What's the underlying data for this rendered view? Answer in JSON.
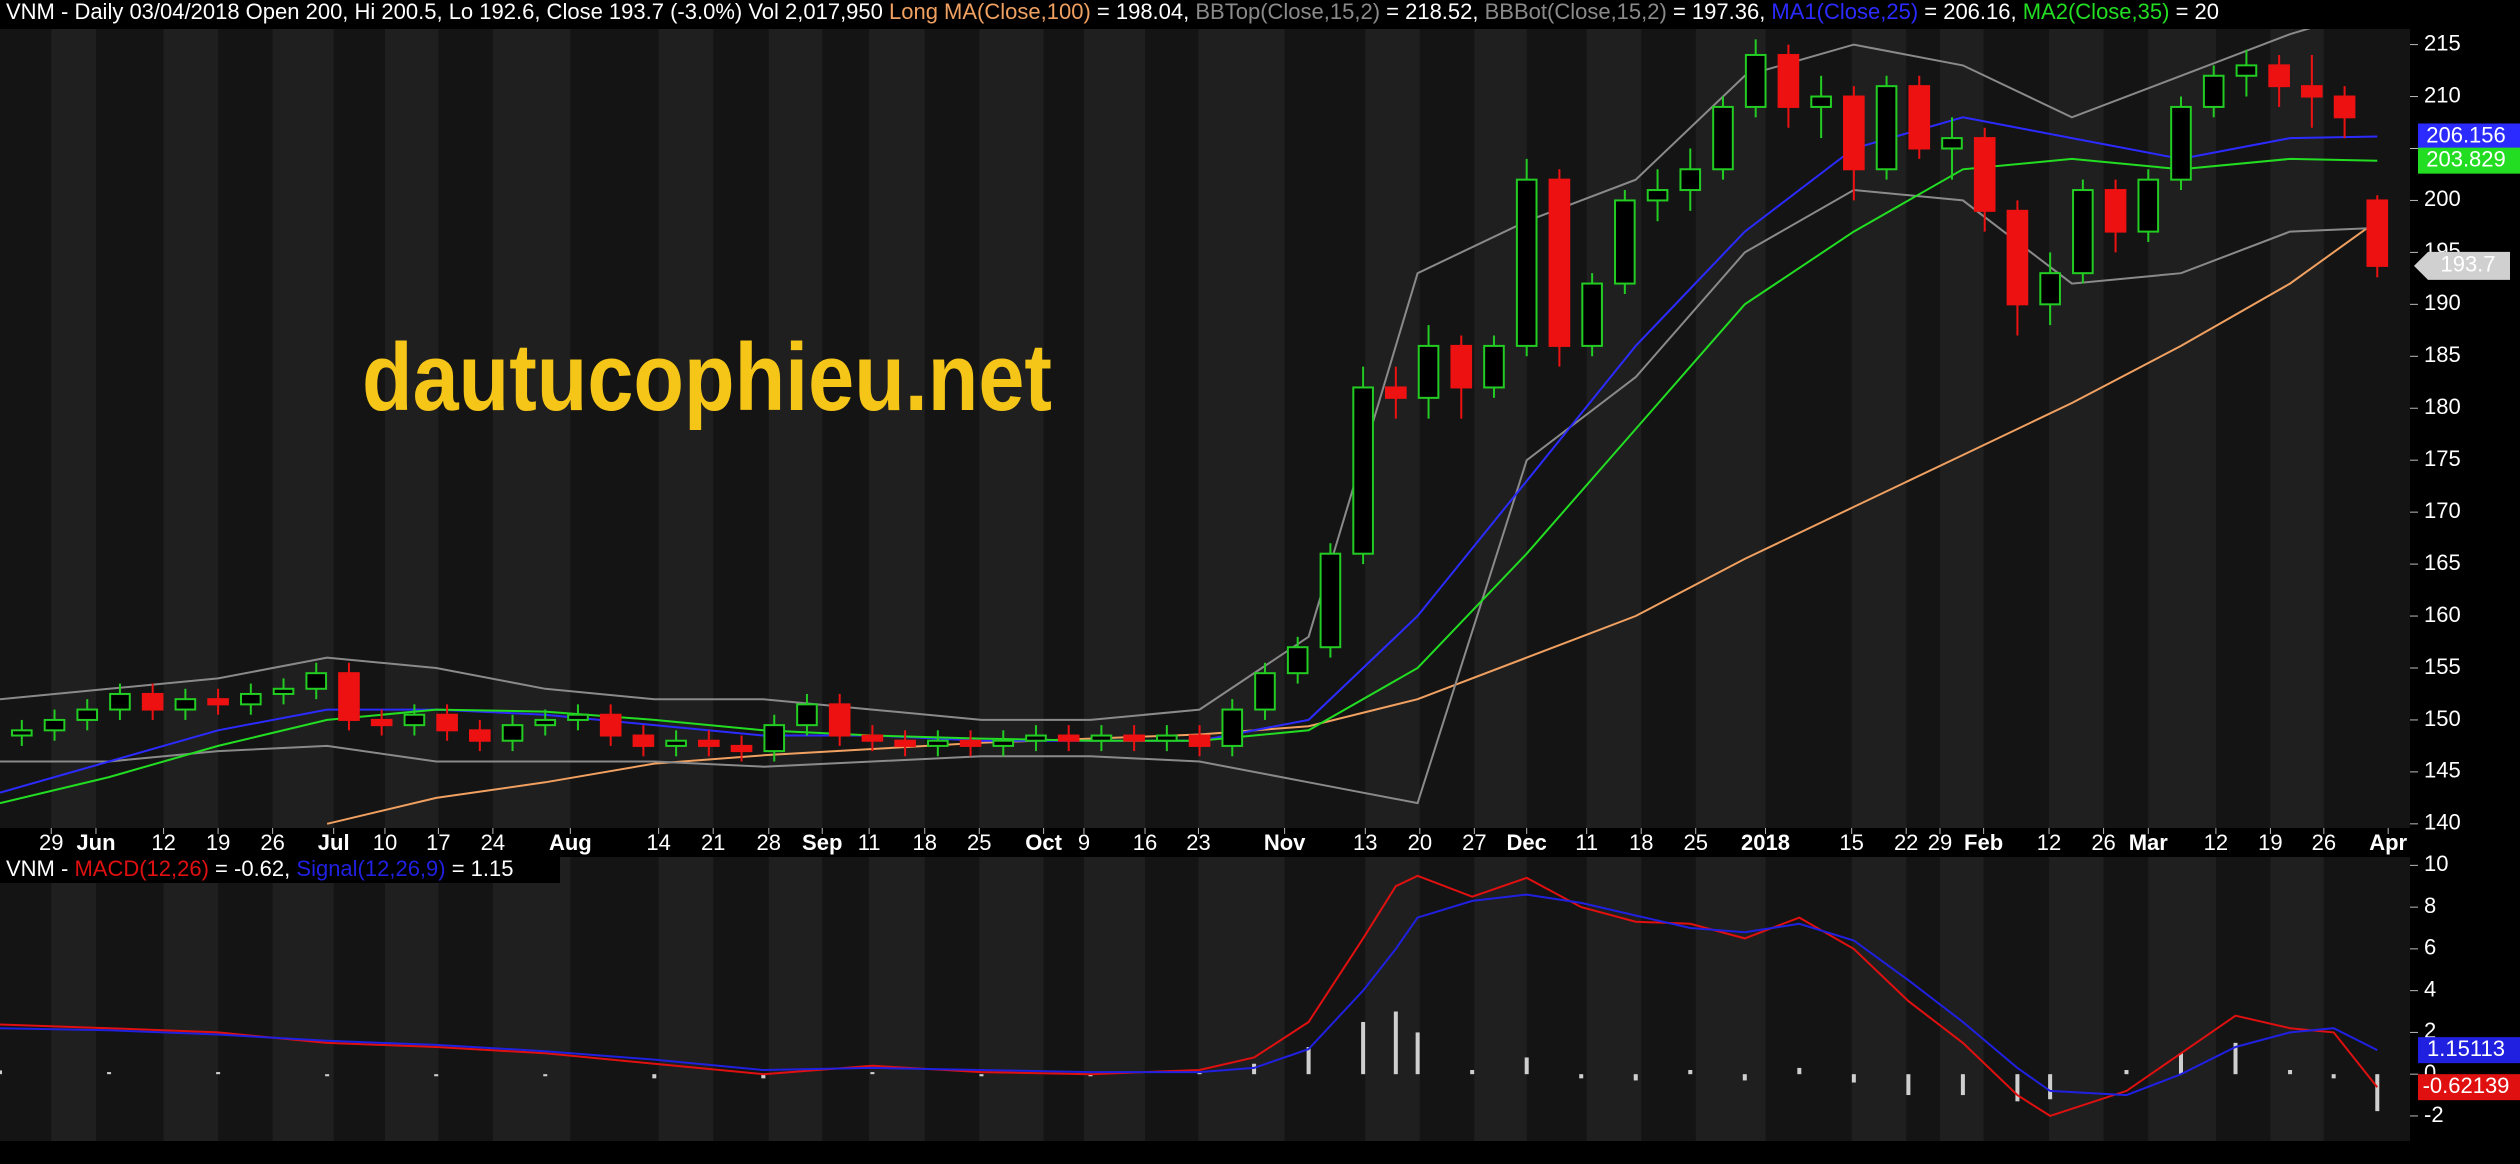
{
  "watermark": "dautucophieu.net",
  "chart_data": [
    {
      "type": "candlestick",
      "header": [
        "VNM - Daily 03/04/2018 Open 200, Hi 200.5, Lo 192.6, Close 193.7 (-3.0%) Vol 2,017,950 ",
        " = 198.04, ",
        " = 218.52, ",
        " = 197.36, ",
        " = 206.16, ",
        " = 20"
      ],
      "header_color": "#ffffff",
      "xlim": [
        0,
        221
      ],
      "xticks": [
        {
          "value": 4.7,
          "label": "29"
        },
        {
          "value": 8.8,
          "label": "Jun"
        },
        {
          "value": 15,
          "label": "12"
        },
        {
          "value": 20,
          "label": "19"
        },
        {
          "value": 25,
          "label": "26"
        },
        {
          "value": 30.6,
          "label": "Jul"
        },
        {
          "value": 35.3,
          "label": "10"
        },
        {
          "value": 40.2,
          "label": "17"
        },
        {
          "value": 45.2,
          "label": "24"
        },
        {
          "value": 52.3,
          "label": "Aug"
        },
        {
          "value": 60.4,
          "label": "14"
        },
        {
          "value": 65.4,
          "label": "21"
        },
        {
          "value": 70.5,
          "label": "28"
        },
        {
          "value": 75.4,
          "label": "Sep"
        },
        {
          "value": 79.7,
          "label": "11"
        },
        {
          "value": 84.8,
          "label": "18"
        },
        {
          "value": 89.8,
          "label": "25"
        },
        {
          "value": 95.7,
          "label": "Oct"
        },
        {
          "value": 99.4,
          "label": "9"
        },
        {
          "value": 105,
          "label": "16"
        },
        {
          "value": 109.9,
          "label": "23"
        },
        {
          "value": 117.8,
          "label": "Nov"
        },
        {
          "value": 125.2,
          "label": "13"
        },
        {
          "value": 130.2,
          "label": "20"
        },
        {
          "value": 135.2,
          "label": "27"
        },
        {
          "value": 140,
          "label": "Dec"
        },
        {
          "value": 145.5,
          "label": "11"
        },
        {
          "value": 150.5,
          "label": "18"
        },
        {
          "value": 155.5,
          "label": "25"
        },
        {
          "value": 161.9,
          "label": "2018"
        },
        {
          "value": 169.8,
          "label": "15"
        },
        {
          "value": 174.8,
          "label": "22"
        },
        {
          "value": 177.9,
          "label": "29"
        },
        {
          "value": 181.9,
          "label": "Feb"
        },
        {
          "value": 187.9,
          "label": "12"
        },
        {
          "value": 192.9,
          "label": "26"
        },
        {
          "value": 197,
          "label": "Mar"
        },
        {
          "value": 203.2,
          "label": "12"
        },
        {
          "value": 208.2,
          "label": "19"
        },
        {
          "value": 213.1,
          "label": "26"
        },
        {
          "value": 219,
          "label": "Apr"
        }
      ],
      "ylim": [
        139.6,
        216.5
      ],
      "yticks": [
        140,
        145,
        150,
        155,
        160,
        165,
        170,
        175,
        180,
        185,
        190,
        195,
        200,
        205,
        210,
        215
      ],
      "up_color": "#22cc22",
      "down_color": "#ee1111",
      "x": [
        2,
        5,
        8,
        11,
        14,
        17,
        20,
        23,
        26,
        29,
        32,
        35,
        38,
        41,
        44,
        47,
        50,
        53,
        56,
        59,
        62,
        65,
        68,
        71,
        74,
        77,
        80,
        83,
        86,
        89,
        92,
        95,
        98,
        101,
        104,
        107,
        110,
        113,
        116,
        119,
        122,
        125,
        128,
        131,
        134,
        137,
        140,
        143,
        146,
        149,
        152,
        155,
        158,
        161,
        164,
        167,
        170,
        173,
        176,
        179,
        182,
        185,
        188,
        191,
        194,
        197,
        200,
        203,
        206,
        209,
        212,
        215,
        218
      ],
      "open": [
        148.5,
        149,
        150,
        151,
        152.5,
        151,
        152,
        151.5,
        152.5,
        153,
        154.5,
        150,
        149.5,
        150.5,
        149,
        148,
        149.5,
        150,
        150.5,
        148.5,
        147.5,
        148,
        147.5,
        147,
        149.5,
        151.5,
        148.5,
        148,
        147.5,
        148,
        147.5,
        148,
        148.5,
        148,
        148.5,
        148,
        148.5,
        147.5,
        151,
        154.5,
        157,
        166,
        182,
        181,
        186,
        182,
        186,
        202,
        186,
        192,
        200,
        201,
        203,
        209,
        214,
        209,
        210,
        203,
        211,
        205,
        206,
        199,
        190,
        193,
        201,
        197,
        202,
        209,
        212,
        213,
        211,
        210,
        200
      ],
      "high": [
        150,
        151,
        152,
        153.5,
        153.5,
        153,
        153,
        153.5,
        154,
        155.5,
        155.5,
        151,
        151.5,
        151.5,
        150,
        150.5,
        151,
        151.5,
        151.5,
        149.5,
        149,
        149,
        148.5,
        150.5,
        152.5,
        152.5,
        149.5,
        149,
        149,
        149,
        149,
        149.5,
        149.5,
        149.5,
        149.5,
        149.5,
        149.5,
        152,
        155.5,
        158,
        167,
        184,
        184,
        188,
        187,
        187,
        204,
        203,
        193,
        201,
        203,
        205,
        210,
        215.5,
        215,
        212,
        211,
        212,
        212,
        208,
        207,
        200,
        195,
        202,
        202,
        203,
        210,
        213,
        214.5,
        214,
        214,
        211,
        200.5
      ],
      "low": [
        147.5,
        148,
        149,
        150,
        150,
        150,
        150.5,
        150.5,
        151.5,
        152,
        149,
        148.5,
        148.5,
        148,
        147,
        147,
        148.5,
        149,
        147.5,
        146.5,
        146.5,
        146.5,
        146,
        146,
        148.5,
        147.5,
        147,
        146.5,
        146.5,
        146.5,
        146.5,
        147,
        147,
        147,
        147,
        147,
        146.5,
        146.5,
        150,
        153.5,
        156,
        165,
        179,
        179,
        179,
        181,
        185,
        184,
        185,
        191,
        198,
        199,
        202,
        208,
        207,
        206,
        200,
        202,
        204,
        202,
        197,
        187,
        188,
        192,
        195,
        196,
        201,
        208,
        210,
        209,
        207,
        206,
        192.6
      ],
      "close": [
        149,
        150,
        151,
        152.5,
        151,
        152,
        151.5,
        152.5,
        153,
        154.5,
        150,
        149.5,
        150.5,
        149,
        148,
        149.5,
        150,
        150.5,
        148.5,
        147.5,
        148,
        147.5,
        147,
        149.5,
        151.5,
        148.5,
        148,
        147.5,
        148,
        147.5,
        148,
        148.5,
        148,
        148.5,
        148,
        148.5,
        147.5,
        151,
        154.5,
        157,
        166,
        182,
        181,
        186,
        182,
        186,
        202,
        186,
        192,
        200,
        201,
        203,
        209,
        214,
        209,
        210,
        203,
        211,
        205,
        206,
        199,
        190,
        193,
        201,
        197,
        202,
        209,
        212,
        213,
        211,
        210,
        208,
        193.7
      ],
      "close_label": "193.7",
      "series": [
        {
          "name": "Long MA(Close,100)",
          "color": "#f0a060",
          "x": [
            0,
            10,
            20,
            30,
            40,
            50,
            60,
            70,
            80,
            90,
            100,
            110,
            120,
            130,
            140,
            150,
            160,
            170,
            180,
            190,
            200,
            210,
            218
          ],
          "values": [
            null,
            null,
            null,
            140,
            142.5,
            144,
            145.8,
            146.6,
            147.2,
            147.8,
            148.2,
            148.6,
            149.4,
            152,
            156,
            160,
            165.5,
            170.5,
            175.5,
            180.5,
            186,
            192,
            198.04
          ]
        },
        {
          "name": "BBTop(Close,15,2)",
          "color": "#8a8a8a",
          "x": [
            0,
            10,
            20,
            30,
            40,
            50,
            60,
            70,
            80,
            90,
            100,
            110,
            120,
            130,
            140,
            150,
            160,
            170,
            180,
            190,
            200,
            210,
            218
          ],
          "values": [
            152,
            153,
            154,
            156,
            155,
            153,
            152,
            152,
            151,
            150,
            150,
            151,
            158,
            193,
            198,
            202,
            212,
            215,
            213,
            208,
            212,
            216,
            218.52
          ]
        },
        {
          "name": "BBBot(Close,15,2)",
          "color": "#8a8a8a",
          "x": [
            0,
            10,
            20,
            30,
            40,
            50,
            60,
            70,
            80,
            90,
            100,
            110,
            120,
            130,
            140,
            150,
            160,
            170,
            180,
            190,
            200,
            210,
            218
          ],
          "values": [
            146,
            146,
            147,
            147.5,
            146,
            146,
            146,
            145.5,
            146,
            146.5,
            146.5,
            146,
            144,
            142,
            175,
            183,
            195,
            201,
            200,
            192,
            193,
            197,
            197.36
          ]
        },
        {
          "name": "MA1(Close,25)",
          "color": "#2b2bff",
          "x": [
            0,
            10,
            20,
            30,
            40,
            50,
            60,
            70,
            80,
            90,
            100,
            110,
            120,
            130,
            140,
            150,
            160,
            170,
            180,
            190,
            200,
            210,
            218
          ],
          "values": [
            143,
            146,
            149,
            151,
            151,
            150.5,
            149.5,
            148.5,
            148.5,
            148,
            148,
            148,
            150,
            160,
            173,
            186,
            197,
            205,
            208,
            206,
            204,
            206,
            206.156
          ],
          "last_label": "206.156"
        },
        {
          "name": "MA2(Close,35)",
          "color": "#22dd22",
          "x": [
            0,
            10,
            20,
            30,
            40,
            50,
            60,
            70,
            80,
            90,
            100,
            110,
            120,
            130,
            140,
            150,
            160,
            170,
            180,
            190,
            200,
            210,
            218
          ],
          "values": [
            142,
            144.5,
            147.5,
            150,
            151,
            150.8,
            150,
            149,
            148.5,
            148.2,
            148,
            148,
            149,
            155,
            166,
            178,
            190,
            197,
            203,
            204,
            203,
            204,
            203.829
          ],
          "last_label": "203.829"
        }
      ]
    },
    {
      "type": "line",
      "header": [
        "VNM - ",
        " = -0.62, ",
        " = 1.15"
      ],
      "header_color": "#ffffff",
      "xlim": [
        0,
        221
      ],
      "ylim": [
        -3.2,
        10.4
      ],
      "yticks": [
        -2,
        0,
        2,
        4,
        6,
        8,
        10
      ],
      "x": [
        0,
        10,
        20,
        30,
        40,
        50,
        60,
        70,
        80,
        90,
        100,
        110,
        115,
        120,
        125,
        128,
        130,
        135,
        140,
        145,
        150,
        155,
        160,
        165,
        170,
        175,
        180,
        185,
        188,
        195,
        200,
        205,
        210,
        214,
        218
      ],
      "series": [
        {
          "name": "MACD(12,26)",
          "color": "#e01010",
          "values": [
            2.38,
            2.2,
            2.0,
            1.5,
            1.3,
            1.0,
            0.5,
            0.0,
            0.4,
            0.1,
            0.0,
            0.2,
            0.8,
            2.5,
            6.5,
            9.0,
            9.5,
            8.5,
            9.4,
            8.0,
            7.3,
            7.2,
            6.5,
            7.5,
            6.0,
            3.5,
            1.5,
            -1.0,
            -2.0,
            -0.8,
            1.0,
            2.8,
            2.2,
            2.0,
            -0.62139
          ],
          "last_label": "-0.62139"
        },
        {
          "name": "Signal(12,26,9)",
          "color": "#2020e0",
          "values": [
            2.2,
            2.1,
            1.9,
            1.6,
            1.4,
            1.1,
            0.7,
            0.2,
            0.3,
            0.2,
            0.1,
            0.1,
            0.3,
            1.2,
            4.0,
            6.0,
            7.5,
            8.3,
            8.6,
            8.2,
            7.6,
            7.0,
            6.8,
            7.2,
            6.4,
            4.5,
            2.5,
            0.3,
            -0.8,
            -1.0,
            0.0,
            1.3,
            2.0,
            2.2,
            1.15113
          ],
          "last_label": "1.15113"
        }
      ],
      "histogram": {
        "color": "#cfcfcf",
        "values": [
          0.18,
          0.1,
          0.1,
          -0.1,
          -0.1,
          -0.1,
          -0.2,
          -0.2,
          0.1,
          -0.1,
          -0.1,
          0.1,
          0.5,
          1.3,
          2.5,
          3.0,
          2.0,
          0.2,
          0.8,
          -0.2,
          -0.3,
          0.2,
          -0.3,
          0.3,
          -0.4,
          -1.0,
          -1.0,
          -1.3,
          -1.2,
          0.2,
          1.0,
          1.5,
          0.2,
          -0.2,
          -1.77
        ]
      }
    }
  ]
}
